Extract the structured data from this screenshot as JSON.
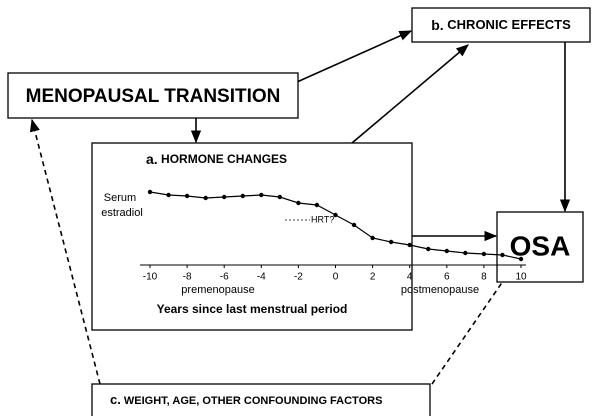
{
  "nodes": {
    "transition": "MENOPAUSAL TRANSITION",
    "chronic": {
      "letter": "b.",
      "label": "CHRONIC EFFECTS"
    },
    "osa": "OSA",
    "hormone": {
      "letter": "a.",
      "label": "HORMONE CHANGES"
    },
    "confounding": {
      "letter": "c.",
      "label": "WEIGHT, AGE, OTHER CONFOUNDING FACTORS"
    }
  },
  "chart_data": {
    "type": "line",
    "y_label": [
      "Serum",
      "estradiol"
    ],
    "x_label": "Years since last menstrual period",
    "regions": [
      "premenopause",
      "postmenopause"
    ],
    "annotation": "HRT?",
    "x": [
      -10,
      -9,
      -8,
      -7,
      -6,
      -5,
      -4,
      -3,
      -2,
      -1,
      0,
      1,
      2,
      3,
      4,
      5,
      6,
      7,
      8,
      9,
      10
    ],
    "values": [
      7.3,
      7.0,
      6.9,
      6.7,
      6.8,
      6.9,
      7.0,
      6.8,
      6.2,
      6.0,
      5.0,
      4.0,
      2.7,
      2.3,
      2.0,
      1.6,
      1.4,
      1.2,
      1.1,
      1.0,
      0.6
    ],
    "color": "#000000",
    "xlim": [
      -10,
      10
    ],
    "ylim": [
      0,
      8
    ],
    "xticks": [
      -10,
      -8,
      -6,
      -4,
      -2,
      0,
      2,
      4,
      6,
      8,
      10
    ]
  }
}
